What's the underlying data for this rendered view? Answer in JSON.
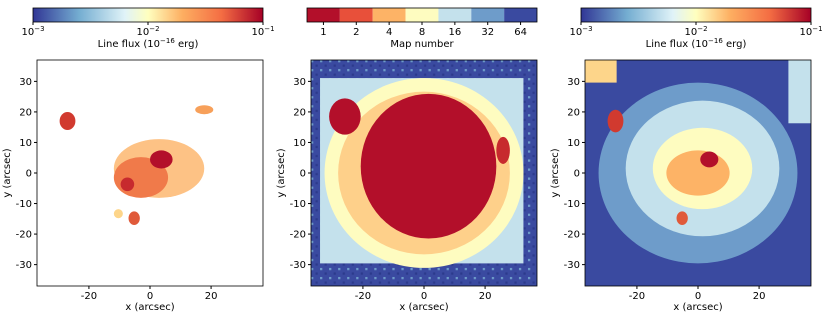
{
  "chart_data": [
    {
      "type": "image",
      "xlabel": "x (arcsec)",
      "ylabel": "y (arcsec)",
      "xlim": [
        -37,
        37
      ],
      "ylim": [
        -37,
        37
      ],
      "xticks": [
        -20,
        0,
        20
      ],
      "yticks": [
        -30,
        -20,
        -10,
        0,
        10,
        20,
        30
      ],
      "colorbar": {
        "scale": "log",
        "colormap": "RdYlBu_r",
        "lim": [
          0.001,
          0.1
        ],
        "ticks": [
          {
            "value": 0.001,
            "label": "10",
            "exponent": "−3"
          },
          {
            "value": 0.01,
            "label": "10",
            "exponent": "−2"
          },
          {
            "value": 0.1,
            "label": "10",
            "exponent": "−1"
          }
        ],
        "label": [
          "Line flux (10",
          "−16",
          " erg)"
        ]
      }
    },
    {
      "type": "image",
      "xlabel": "x (arcsec)",
      "ylabel": "y (arcsec)",
      "xlim": [
        -37,
        37
      ],
      "ylim": [
        -37,
        37
      ],
      "xticks": [
        -20,
        0,
        20
      ],
      "yticks": [
        -30,
        -20,
        -10,
        0,
        10,
        20,
        30
      ],
      "colorbar": {
        "scale": "discrete",
        "categories": [
          "1",
          "2",
          "4",
          "8",
          "16",
          "32",
          "64"
        ],
        "colors": [
          "#b30f2a",
          "#e8503a",
          "#fdb366",
          "#fefcc0",
          "#c4e1ec",
          "#6e9cca",
          "#3a4aa0"
        ],
        "label": [
          "Map number"
        ]
      }
    },
    {
      "type": "image",
      "xlabel": "x (arcsec)",
      "ylabel": "y (arcsec)",
      "xlim": [
        -37,
        37
      ],
      "ylim": [
        -37,
        37
      ],
      "xticks": [
        -20,
        0,
        20
      ],
      "yticks": [
        -30,
        -20,
        -10,
        0,
        10,
        20,
        30
      ],
      "colorbar": {
        "scale": "log",
        "colormap": "RdYlBu_r",
        "lim": [
          0.001,
          0.1
        ],
        "ticks": [
          {
            "value": 0.001,
            "label": "10",
            "exponent": "−3"
          },
          {
            "value": 0.01,
            "label": "10",
            "exponent": "−2"
          },
          {
            "value": 0.1,
            "label": "10",
            "exponent": "−1"
          }
        ],
        "label": [
          "Line flux (10",
          "−16",
          " erg)"
        ]
      }
    }
  ]
}
